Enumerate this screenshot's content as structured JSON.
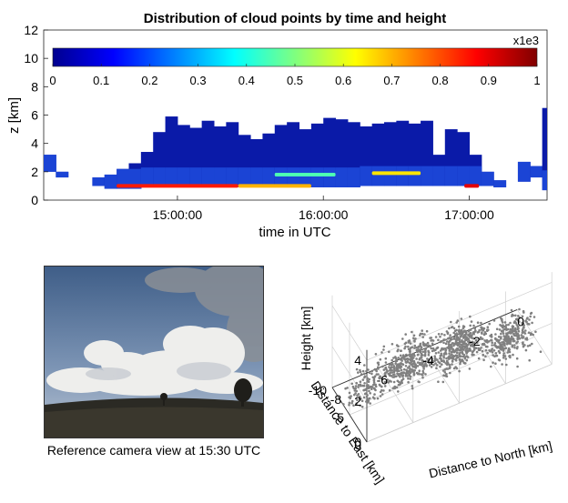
{
  "chart_data": [
    {
      "type": "heatmap",
      "title": "Distribution of cloud points by time and height",
      "xlabel": "time in UTC",
      "ylabel": "z [km]",
      "xlim": [
        "14:05:00",
        "17:32:00"
      ],
      "ylim": [
        0,
        12
      ],
      "x_ticks": [
        "15:00:00",
        "16:00:00",
        "17:00:00"
      ],
      "y_ticks": [
        "0",
        "2",
        "4",
        "6",
        "8",
        "10",
        "12"
      ],
      "colorbar": {
        "multiplier_label": "x1e3",
        "range": [
          0,
          1
        ],
        "ticks": [
          "0",
          "0.1",
          "0.2",
          "0.3",
          "0.4",
          "0.5",
          "0.6",
          "0.7",
          "0.8",
          "0.9",
          "1"
        ],
        "colormap": "jet",
        "placement": "top inside axes"
      },
      "columns": [
        {
          "t": "14:05",
          "top": 3.2,
          "base": 2.0
        },
        {
          "t": "14:10",
          "top": 2.0,
          "base": 1.6
        },
        {
          "t": "14:25",
          "top": 1.6,
          "base": 1.0
        },
        {
          "t": "14:30",
          "top": 1.8,
          "base": 0.8
        },
        {
          "t": "14:35",
          "top": 2.2,
          "base": 0.8
        },
        {
          "t": "14:40",
          "top": 2.6,
          "base": 0.8
        },
        {
          "t": "14:45",
          "top": 3.4,
          "base": 0.9
        },
        {
          "t": "14:50",
          "top": 4.8,
          "base": 0.9
        },
        {
          "t": "14:55",
          "top": 5.9,
          "base": 0.9
        },
        {
          "t": "15:00",
          "top": 5.3,
          "base": 0.9
        },
        {
          "t": "15:05",
          "top": 5.1,
          "base": 0.9
        },
        {
          "t": "15:10",
          "top": 5.6,
          "base": 0.9
        },
        {
          "t": "15:15",
          "top": 5.2,
          "base": 0.9
        },
        {
          "t": "15:20",
          "top": 5.5,
          "base": 0.9
        },
        {
          "t": "15:25",
          "top": 4.6,
          "base": 0.9
        },
        {
          "t": "15:30",
          "top": 4.3,
          "base": 0.9
        },
        {
          "t": "15:35",
          "top": 4.7,
          "base": 0.9
        },
        {
          "t": "15:40",
          "top": 5.3,
          "base": 0.9
        },
        {
          "t": "15:45",
          "top": 5.5,
          "base": 0.9
        },
        {
          "t": "15:50",
          "top": 5.0,
          "base": 0.9
        },
        {
          "t": "15:55",
          "top": 5.4,
          "base": 0.9
        },
        {
          "t": "16:00",
          "top": 5.8,
          "base": 0.9
        },
        {
          "t": "16:05",
          "top": 5.7,
          "base": 0.9
        },
        {
          "t": "16:10",
          "top": 5.5,
          "base": 0.9
        },
        {
          "t": "16:15",
          "top": 5.2,
          "base": 1.0
        },
        {
          "t": "16:20",
          "top": 5.4,
          "base": 1.0
        },
        {
          "t": "16:25",
          "top": 5.5,
          "base": 1.0
        },
        {
          "t": "16:30",
          "top": 5.6,
          "base": 1.0
        },
        {
          "t": "16:35",
          "top": 5.4,
          "base": 1.0
        },
        {
          "t": "16:40",
          "top": 5.6,
          "base": 1.0
        },
        {
          "t": "16:45",
          "top": 3.2,
          "base": 1.0
        },
        {
          "t": "16:50",
          "top": 5.0,
          "base": 1.0
        },
        {
          "t": "16:55",
          "top": 4.8,
          "base": 1.0
        },
        {
          "t": "17:00",
          "top": 3.2,
          "base": 1.0
        },
        {
          "t": "17:05",
          "top": 2.0,
          "base": 1.0
        },
        {
          "t": "17:10",
          "top": 1.4,
          "base": 0.9
        },
        {
          "t": "17:20",
          "top": 2.7,
          "base": 1.3
        },
        {
          "t": "17:25",
          "top": 2.4,
          "base": 1.6
        },
        {
          "t": "17:30",
          "top": 6.5,
          "base": 0.7
        }
      ],
      "hotspots": [
        {
          "t_start": "14:35",
          "t_end": "15:25",
          "z": 1.0,
          "value": 0.85
        },
        {
          "t_start": "15:25",
          "t_end": "15:55",
          "z": 1.0,
          "value": 0.7
        },
        {
          "t_start": "15:40",
          "t_end": "16:05",
          "z": 1.8,
          "value": 0.45
        },
        {
          "t_start": "16:20",
          "t_end": "16:40",
          "z": 1.9,
          "value": 0.65
        },
        {
          "t_start": "16:58",
          "t_end": "17:04",
          "z": 1.0,
          "value": 0.9
        }
      ]
    },
    {
      "type": "scatter",
      "title": "",
      "xlabel": "Distance to North [km]",
      "ylabel": "Distance to East [km]",
      "zlabel": "Height [km]",
      "xlim": [
        -8,
        0
      ],
      "ylim": [
        -10,
        0
      ],
      "zlim": [
        0,
        4
      ],
      "x_ticks": [
        "-8",
        "-6",
        "-4",
        "-2",
        "0"
      ],
      "y_ticks": [
        "-10",
        "-5",
        "0"
      ],
      "z_ticks": [
        "0",
        "2",
        "4"
      ],
      "grid": true,
      "marker_color": "#808080",
      "clusters": [
        {
          "x_center": -7.2,
          "y_center": -6.0,
          "z_center": 0.6,
          "spread": 0.8,
          "count": 120
        },
        {
          "x_center": -5.5,
          "y_center": -4.5,
          "z_center": 1.5,
          "spread": 1.2,
          "count": 400
        },
        {
          "x_center": -3.5,
          "y_center": -3.5,
          "z_center": 1.6,
          "spread": 1.1,
          "count": 380
        },
        {
          "x_center": -1.5,
          "y_center": -2.5,
          "z_center": 1.4,
          "spread": 1.0,
          "count": 300
        }
      ]
    }
  ],
  "camera": {
    "caption": "Reference camera view at 15:30 UTC"
  },
  "colors": {
    "sky_top": "#4a6a93",
    "sky_bottom": "#9fb3cc",
    "ground": "#2a2822",
    "cloud": "#f2f2f0"
  }
}
